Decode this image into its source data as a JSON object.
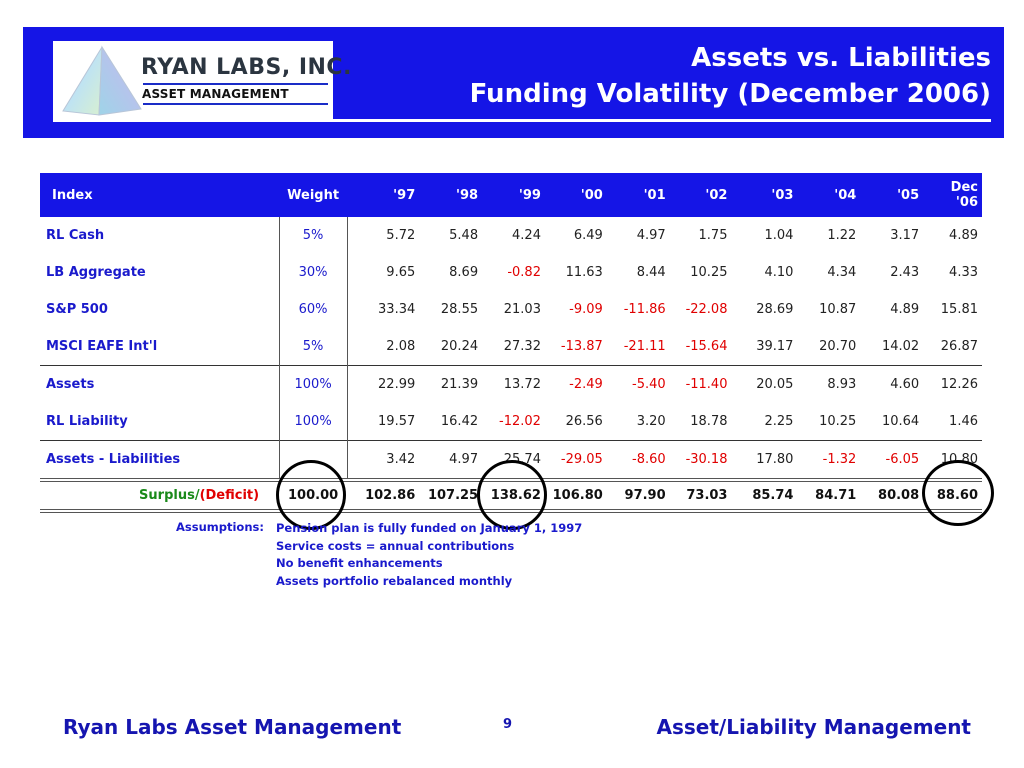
{
  "header": {
    "logo_name": "RYAN LABS, INC.",
    "logo_sub": "ASSET MANAGEMENT",
    "title_line1": "Assets vs. Liabilities",
    "title_line2": "Funding Volatility (December 2006)",
    "band_color": "#1515e6"
  },
  "table": {
    "columns": [
      "Index",
      "Weight",
      "'97",
      "'98",
      "'99",
      "'00",
      "'01",
      "'02",
      "'03",
      "'04",
      "'05",
      "Dec '06"
    ],
    "dec_line1": "Dec",
    "dec_line2": "'06",
    "rows": [
      {
        "name": "RL Cash",
        "weight": "5%",
        "values": [
          "5.72",
          "5.48",
          "4.24",
          "6.49",
          "4.97",
          "1.75",
          "1.04",
          "1.22",
          "3.17",
          "4.89"
        ]
      },
      {
        "name": "LB Aggregate",
        "weight": "30%",
        "values": [
          "9.65",
          "8.69",
          "-0.82",
          "11.63",
          "8.44",
          "10.25",
          "4.10",
          "4.34",
          "2.43",
          "4.33"
        ]
      },
      {
        "name": "S&P 500",
        "weight": "60%",
        "values": [
          "33.34",
          "28.55",
          "21.03",
          "-9.09",
          "-11.86",
          "-22.08",
          "28.69",
          "10.87",
          "4.89",
          "15.81"
        ]
      },
      {
        "name": "MSCI EAFE Int'l",
        "weight": "5%",
        "values": [
          "2.08",
          "20.24",
          "27.32",
          "-13.87",
          "-21.11",
          "-15.64",
          "39.17",
          "20.70",
          "14.02",
          "26.87"
        ]
      },
      {
        "name": "Assets",
        "weight": "100%",
        "values": [
          "22.99",
          "21.39",
          "13.72",
          "-2.49",
          "-5.40",
          "-11.40",
          "20.05",
          "8.93",
          "4.60",
          "12.26"
        ]
      },
      {
        "name": "RL Liability",
        "weight": "100%",
        "values": [
          "19.57",
          "16.42",
          "-12.02",
          "26.56",
          "3.20",
          "18.78",
          "2.25",
          "10.25",
          "10.64",
          "1.46"
        ]
      },
      {
        "name": "Assets - Liabilities",
        "weight": "",
        "values": [
          "3.42",
          "4.97",
          "25.74",
          "-29.05",
          "-8.60",
          "-30.18",
          "17.80",
          "-1.32",
          "-6.05",
          "10.80"
        ]
      }
    ],
    "surplus": {
      "label_green": "Surplus/",
      "label_red": "(Deficit)",
      "values": [
        "100.00",
        "102.86",
        "107.25",
        "138.62",
        "106.80",
        "97.90",
        "73.03",
        "85.74",
        "84.71",
        "80.08",
        "88.60"
      ]
    },
    "negative_color": "#e00000",
    "name_color": "#1a1acc"
  },
  "assumptions": {
    "label": "Assumptions:",
    "items": [
      "Pension plan is fully funded on January 1, 1997",
      "Service costs = annual contributions",
      "No benefit enhancements",
      "Assets portfolio rebalanced monthly"
    ]
  },
  "footer": {
    "left": "Ryan Labs Asset Management",
    "page": "9",
    "right": "Asset/Liability Management"
  }
}
